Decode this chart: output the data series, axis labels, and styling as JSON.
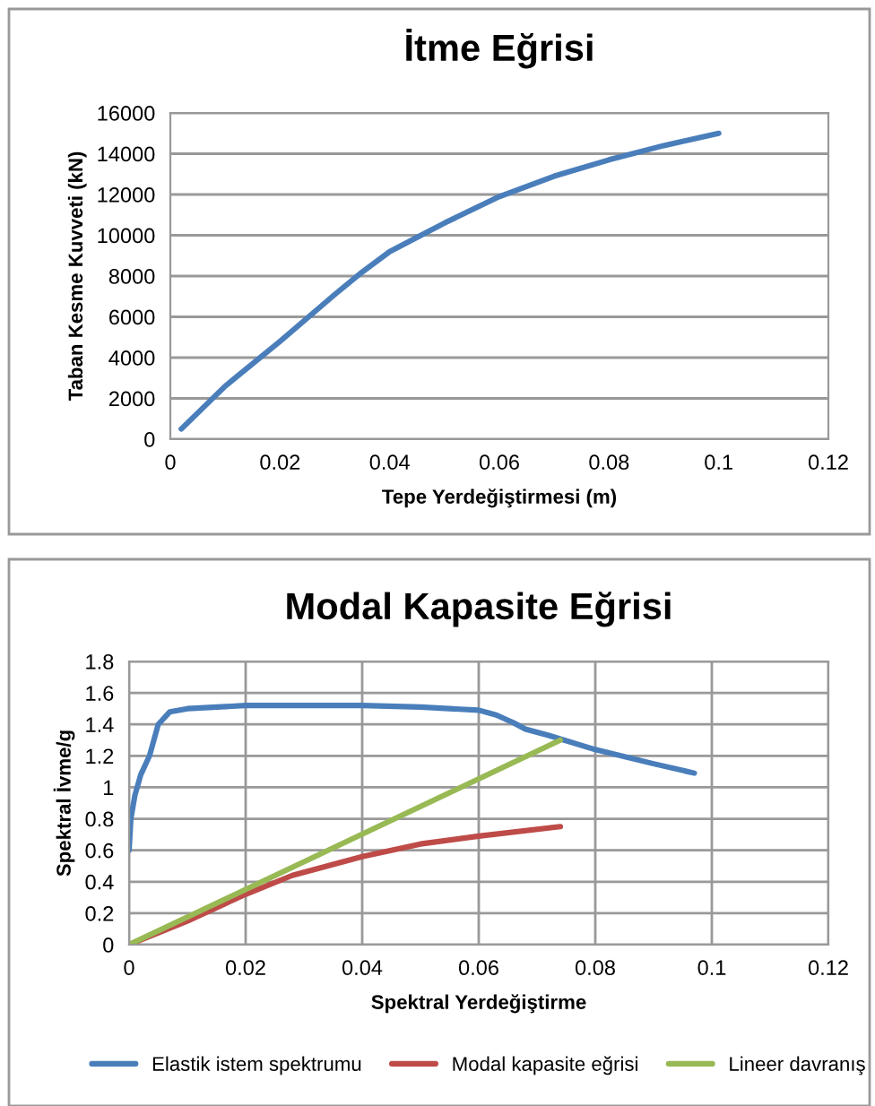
{
  "chart_data": [
    {
      "type": "line",
      "title": "İtme Eğrisi",
      "xlabel": "Tepe Yerdeğiştirmesi (m)",
      "ylabel": "Taban Kesme Kuvveti (kN)",
      "series": [
        {
          "color": "#4a7ebb",
          "x": [
            0.002,
            0.01,
            0.02,
            0.03,
            0.035,
            0.04,
            0.05,
            0.06,
            0.07,
            0.08,
            0.09,
            0.1
          ],
          "values": [
            500,
            2600,
            4800,
            7100,
            8200,
            9200,
            10600,
            11900,
            12900,
            13700,
            14400,
            15000
          ]
        }
      ],
      "xlim": [
        0,
        0.12
      ],
      "xticks": [
        0,
        0.02,
        0.04,
        0.06,
        0.08,
        0.1,
        0.12
      ],
      "ylim": [
        0,
        16000
      ],
      "yticks": [
        0,
        2000,
        4000,
        6000,
        8000,
        10000,
        12000,
        14000,
        16000
      ],
      "grid": "y",
      "legend": false
    },
    {
      "type": "line",
      "title": "Modal Kapasite Eğrisi",
      "xlabel": "Spektral Yerdeğiştirme",
      "ylabel": "Spektral İvme/g",
      "series": [
        {
          "name": "Elastik istem spektrumu",
          "color": "#4a7ebb",
          "x": [
            0,
            0.0003,
            0.001,
            0.002,
            0.0035,
            0.005,
            0.007,
            0.01,
            0.02,
            0.03,
            0.04,
            0.05,
            0.06,
            0.063,
            0.066,
            0.068,
            0.072,
            0.08,
            0.09,
            0.097
          ],
          "values": [
            0.6,
            0.8,
            0.95,
            1.08,
            1.2,
            1.4,
            1.48,
            1.5,
            1.52,
            1.52,
            1.52,
            1.51,
            1.49,
            1.46,
            1.41,
            1.37,
            1.33,
            1.24,
            1.15,
            1.09
          ]
        },
        {
          "name": "Modal kapasite eğrisi",
          "color": "#be4b48",
          "x": [
            0,
            0.01,
            0.02,
            0.028,
            0.04,
            0.05,
            0.06,
            0.074
          ],
          "values": [
            0,
            0.15,
            0.32,
            0.44,
            0.56,
            0.64,
            0.69,
            0.75
          ]
        },
        {
          "name": "Lineer davranış",
          "color": "#98b954",
          "x": [
            0,
            0.074
          ],
          "values": [
            0,
            1.3
          ]
        }
      ],
      "xlim": [
        0,
        0.12
      ],
      "xticks": [
        0,
        0.02,
        0.04,
        0.06,
        0.08,
        0.1,
        0.12
      ],
      "ylim": [
        0,
        1.8
      ],
      "yticks": [
        0,
        0.2,
        0.4,
        0.6,
        0.8,
        1,
        1.2,
        1.4,
        1.6,
        1.8
      ],
      "grid": true,
      "legend": "bottom"
    }
  ]
}
